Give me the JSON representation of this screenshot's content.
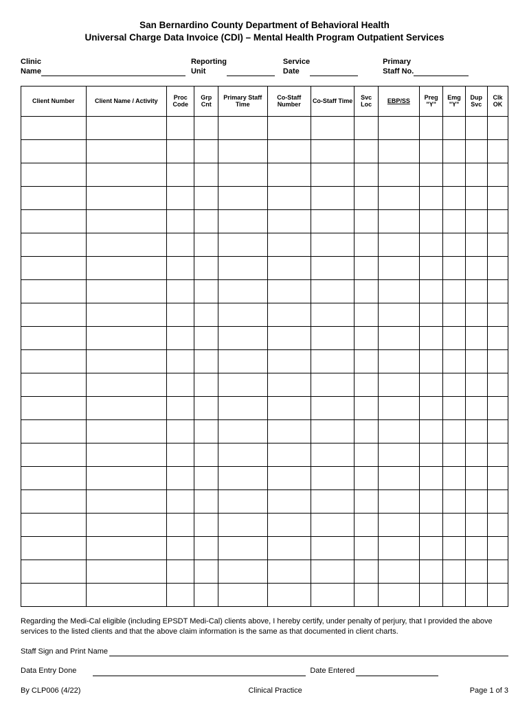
{
  "header": {
    "title_line1": "San Bernardino County Department of Behavioral Health",
    "title_line2": "Universal Charge Data Invoice (CDI) – Mental Health Program Outpatient Services"
  },
  "fields": {
    "clinic_name_label": "Clinic\nName",
    "reporting_unit_label": "Reporting\nUnit",
    "service_date_label": "Service\nDate",
    "primary_staff_label": "Primary\nStaff No."
  },
  "table": {
    "columns": [
      "Client Number",
      "Client Name / Activity",
      "Proc Code",
      "Grp Cnt",
      "Primary Staff Time",
      "Co-Staff Number",
      "Co-Staff Time",
      "Svc Loc",
      "EBP/SS",
      "Preg \"Y\"",
      "Emg \"Y\"",
      "Dup Svc",
      "Clk OK"
    ],
    "row_count": 21
  },
  "cert": {
    "text": "Regarding the Medi-Cal eligible (including EPSDT Medi-Cal) clients above, I hereby certify, under penalty of perjury, that I provided the above services to the listed clients and that the above claim information is the same as that documented in client charts.",
    "sign_label": "Staff Sign and Print Name",
    "data_entry_label": "Data Entry Done",
    "date_entered_label": "Date Entered"
  },
  "footer": {
    "left": "By CLP006 (4/22)",
    "center": "Clinical Practice",
    "right": "Page 1 of 3"
  },
  "colors": {
    "text": "#000000",
    "background": "#ffffff",
    "border": "#000000"
  }
}
